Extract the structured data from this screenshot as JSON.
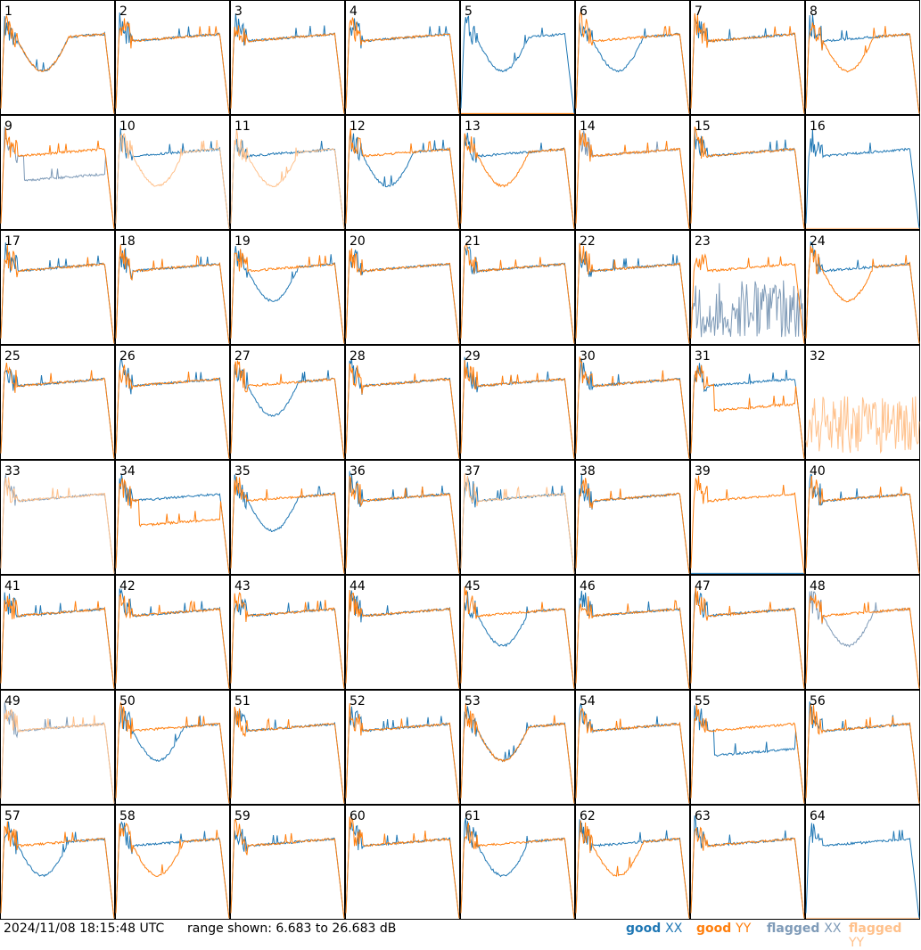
{
  "chart_data": {
    "type": "line",
    "layout": "small-multiples 8x8",
    "timestamp": "2024/11/08 18:15:48 UTC",
    "range_text": "range shown: 6.683 to 26.683 dB",
    "ylim": [
      6.683,
      26.683
    ],
    "legend": {
      "placement": "bottom-right",
      "entries": [
        {
          "state": "good",
          "pol": "XX",
          "color": "#1f77b4"
        },
        {
          "state": "good",
          "pol": "YY",
          "color": "#ff7f0e"
        },
        {
          "state": "flagged",
          "pol": "XX",
          "color": "#7f9bb8"
        },
        {
          "state": "flagged",
          "pol": "YY",
          "color": "#ffc08a"
        }
      ]
    },
    "colors": {
      "good_xx": "#1f77b4",
      "good_yy": "#ff7f0e",
      "flagged_xx": "#7f9bb8",
      "flagged_yy": "#ffc08a"
    },
    "panels": [
      {
        "id": "1",
        "xx": "dip",
        "yy": "dip",
        "fx": false,
        "fy": false
      },
      {
        "id": "2",
        "xx": "normal",
        "yy": "normal",
        "fx": false,
        "fy": false
      },
      {
        "id": "3",
        "xx": "normal",
        "yy": "normal",
        "fx": false,
        "fy": false
      },
      {
        "id": "4",
        "xx": "normal",
        "yy": "normal",
        "fx": false,
        "fy": false
      },
      {
        "id": "5",
        "xx": "dip",
        "yy": "zero",
        "fx": false,
        "fy": false
      },
      {
        "id": "6",
        "xx": "dip",
        "yy": "normal",
        "fx": false,
        "fy": false
      },
      {
        "id": "7",
        "xx": "normal",
        "yy": "normal",
        "fx": false,
        "fy": false
      },
      {
        "id": "8",
        "xx": "normal",
        "yy": "dip",
        "fx": false,
        "fy": false
      },
      {
        "id": "9",
        "xx": "low",
        "yy": "normal",
        "fx": true,
        "fy": false
      },
      {
        "id": "10",
        "xx": "normal",
        "yy": "dip",
        "fx": false,
        "fy": true
      },
      {
        "id": "11",
        "xx": "normal",
        "yy": "dip",
        "fx": false,
        "fy": true
      },
      {
        "id": "12",
        "xx": "dip",
        "yy": "normal",
        "fx": false,
        "fy": false
      },
      {
        "id": "13",
        "xx": "normal",
        "yy": "dip",
        "fx": false,
        "fy": false
      },
      {
        "id": "14",
        "xx": "normal",
        "yy": "normal",
        "fx": true,
        "fy": false
      },
      {
        "id": "15",
        "xx": "normal",
        "yy": "normal",
        "fx": false,
        "fy": false
      },
      {
        "id": "16",
        "xx": "normal",
        "yy": "zero",
        "fx": false,
        "fy": true
      },
      {
        "id": "17",
        "xx": "normal",
        "yy": "normal",
        "fx": false,
        "fy": false
      },
      {
        "id": "18",
        "xx": "normal",
        "yy": "normal",
        "fx": false,
        "fy": false
      },
      {
        "id": "19",
        "xx": "dip",
        "yy": "normal",
        "fx": false,
        "fy": false
      },
      {
        "id": "20",
        "xx": "normal",
        "yy": "normal",
        "fx": false,
        "fy": false
      },
      {
        "id": "21",
        "xx": "normal",
        "yy": "normal",
        "fx": false,
        "fy": false
      },
      {
        "id": "22",
        "xx": "normal",
        "yy": "normal",
        "fx": false,
        "fy": false
      },
      {
        "id": "23",
        "xx": "noise",
        "yy": "normal",
        "fx": true,
        "fy": false
      },
      {
        "id": "24",
        "xx": "normal",
        "yy": "dip",
        "fx": false,
        "fy": false
      },
      {
        "id": "25",
        "xx": "normal",
        "yy": "normal",
        "fx": false,
        "fy": false
      },
      {
        "id": "26",
        "xx": "normal",
        "yy": "normal",
        "fx": false,
        "fy": false
      },
      {
        "id": "27",
        "xx": "dip",
        "yy": "normal",
        "fx": false,
        "fy": false
      },
      {
        "id": "28",
        "xx": "normal",
        "yy": "normal",
        "fx": false,
        "fy": false
      },
      {
        "id": "29",
        "xx": "normal",
        "yy": "normal",
        "fx": false,
        "fy": false
      },
      {
        "id": "30",
        "xx": "normal",
        "yy": "normal",
        "fx": false,
        "fy": false
      },
      {
        "id": "31",
        "xx": "normal",
        "yy": "low",
        "fx": false,
        "fy": false
      },
      {
        "id": "32",
        "xx": "none",
        "yy": "noise",
        "fx": false,
        "fy": true
      },
      {
        "id": "33",
        "xx": "normal",
        "yy": "normal",
        "fx": true,
        "fy": true
      },
      {
        "id": "34",
        "xx": "normal",
        "yy": "low",
        "fx": false,
        "fy": false
      },
      {
        "id": "35",
        "xx": "dip",
        "yy": "normal",
        "fx": false,
        "fy": false
      },
      {
        "id": "36",
        "xx": "normal",
        "yy": "normal",
        "fx": false,
        "fy": false
      },
      {
        "id": "37",
        "xx": "normal",
        "yy": "normal",
        "fx": false,
        "fy": true
      },
      {
        "id": "38",
        "xx": "normal",
        "yy": "normal",
        "fx": false,
        "fy": false
      },
      {
        "id": "39",
        "xx": "zero",
        "yy": "normal",
        "fx": false,
        "fy": false
      },
      {
        "id": "40",
        "xx": "normal",
        "yy": "normal",
        "fx": false,
        "fy": false
      },
      {
        "id": "41",
        "xx": "normal",
        "yy": "normal",
        "fx": false,
        "fy": false
      },
      {
        "id": "42",
        "xx": "normal",
        "yy": "normal",
        "fx": false,
        "fy": false
      },
      {
        "id": "43",
        "xx": "normal",
        "yy": "normal",
        "fx": false,
        "fy": false
      },
      {
        "id": "44",
        "xx": "normal",
        "yy": "normal",
        "fx": false,
        "fy": false
      },
      {
        "id": "45",
        "xx": "dip",
        "yy": "normal",
        "fx": false,
        "fy": false
      },
      {
        "id": "46",
        "xx": "normal",
        "yy": "normal",
        "fx": false,
        "fy": false
      },
      {
        "id": "47",
        "xx": "normal",
        "yy": "normal",
        "fx": false,
        "fy": false
      },
      {
        "id": "48",
        "xx": "dip",
        "yy": "normal",
        "fx": true,
        "fy": false
      },
      {
        "id": "49",
        "xx": "normal",
        "yy": "normal",
        "fx": true,
        "fy": true
      },
      {
        "id": "50",
        "xx": "dip",
        "yy": "normal",
        "fx": false,
        "fy": false
      },
      {
        "id": "51",
        "xx": "normal",
        "yy": "normal",
        "fx": false,
        "fy": false
      },
      {
        "id": "52",
        "xx": "normal",
        "yy": "normal",
        "fx": false,
        "fy": false
      },
      {
        "id": "53",
        "xx": "dip",
        "yy": "dip",
        "fx": false,
        "fy": false
      },
      {
        "id": "54",
        "xx": "normal",
        "yy": "normal",
        "fx": false,
        "fy": false
      },
      {
        "id": "55",
        "xx": "low",
        "yy": "normal",
        "fx": false,
        "fy": false
      },
      {
        "id": "56",
        "xx": "normal",
        "yy": "normal",
        "fx": false,
        "fy": false
      },
      {
        "id": "57",
        "xx": "dip",
        "yy": "normal",
        "fx": false,
        "fy": false
      },
      {
        "id": "58",
        "xx": "normal",
        "yy": "dip",
        "fx": false,
        "fy": false
      },
      {
        "id": "59",
        "xx": "normal",
        "yy": "normal",
        "fx": false,
        "fy": false
      },
      {
        "id": "60",
        "xx": "normal",
        "yy": "normal",
        "fx": false,
        "fy": false
      },
      {
        "id": "61",
        "xx": "dip",
        "yy": "normal",
        "fx": false,
        "fy": false
      },
      {
        "id": "62",
        "xx": "normal",
        "yy": "dip",
        "fx": false,
        "fy": false
      },
      {
        "id": "63",
        "xx": "normal",
        "yy": "normal",
        "fx": false,
        "fy": false
      },
      {
        "id": "64",
        "xx": "normal",
        "yy": "zero",
        "fx": false,
        "fy": true
      }
    ]
  }
}
